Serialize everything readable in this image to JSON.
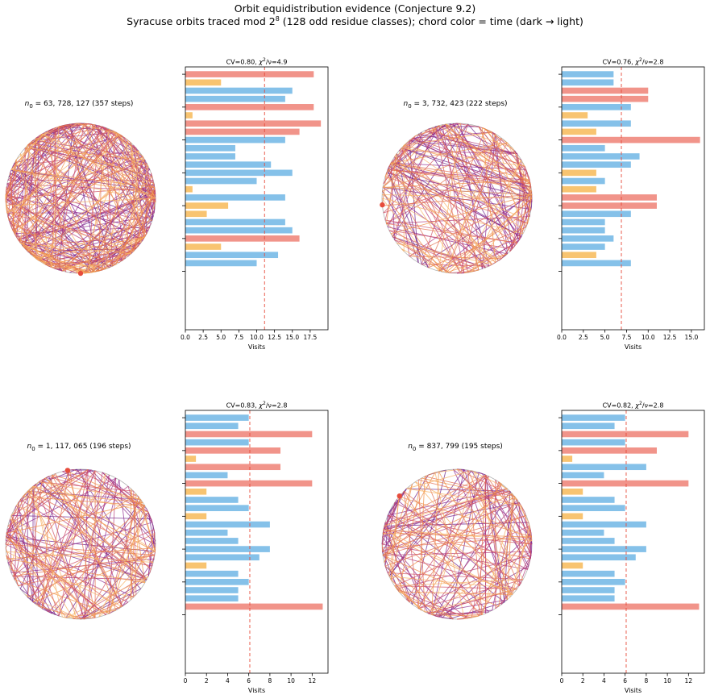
{
  "figure": {
    "title": "Orbit equidistribution evidence (Conjecture 9.2)",
    "subtitle_prefix": "Syracuse orbits traced mod 2",
    "subtitle_exp": "8",
    "subtitle_suffix": " (128 odd residue classes); chord color = time (dark → light)"
  },
  "colors": {
    "over": "#f1948a",
    "under": "#f8c471",
    "normal": "#85c1e9",
    "mean_line": "#e74c3c",
    "start_dot": "#e74c3c",
    "chord_palette": [
      "#6c1d88",
      "#8e2a8f",
      "#b13a7a",
      "#cf4f66",
      "#e36c4f",
      "#ef8d45",
      "#f7b266"
    ]
  },
  "chart_data": [
    {
      "type": "chord-diagram",
      "title_var": "n",
      "title_sub": "0",
      "title_text": " = 63, 728, 127 (357 steps)",
      "steps": 357,
      "start_angle_deg": 270
    },
    {
      "type": "bar",
      "orientation": "horizontal",
      "title_cv": "CV=0.80, ",
      "title_chi": "χ",
      "title_chi_exp": "2",
      "title_nu": "/ν=4.9",
      "xlabel": "Visits",
      "xlim": [
        0,
        20
      ],
      "xticks": [
        "0.0",
        "2.5",
        "5.0",
        "7.5",
        "10.0",
        "12.5",
        "15.0",
        "17.5"
      ],
      "xtick_values": [
        0,
        2.5,
        5,
        7.5,
        10,
        12.5,
        15,
        17.5
      ],
      "mean": 11.1,
      "values": [
        18,
        5,
        15,
        14,
        18,
        1,
        19,
        16,
        14,
        7,
        7,
        12,
        15,
        10,
        1,
        14,
        6,
        3,
        14,
        15,
        16,
        5,
        13,
        10
      ],
      "classes": [
        "over",
        "under",
        "normal",
        "normal",
        "over",
        "under",
        "over",
        "over",
        "normal",
        "normal",
        "normal",
        "normal",
        "normal",
        "normal",
        "under",
        "normal",
        "under",
        "under",
        "normal",
        "normal",
        "over",
        "under",
        "normal",
        "normal"
      ]
    },
    {
      "type": "chord-diagram",
      "title_var": "n",
      "title_sub": "0",
      "title_text": " = 3, 732, 423 (222 steps)",
      "steps": 222,
      "start_angle_deg": 185
    },
    {
      "type": "bar",
      "orientation": "horizontal",
      "title_cv": "CV=0.76, ",
      "title_chi": "χ",
      "title_chi_exp": "2",
      "title_nu": "/ν=2.8",
      "xlabel": "Visits",
      "xlim": [
        0,
        16.5
      ],
      "xticks": [
        "0.0",
        "2.5",
        "5.0",
        "7.5",
        "10.0",
        "12.5",
        "15.0"
      ],
      "xtick_values": [
        0,
        2.5,
        5,
        7.5,
        10,
        12.5,
        15
      ],
      "mean": 6.9,
      "values": [
        6,
        6,
        10,
        10,
        8,
        3,
        8,
        4,
        16,
        5,
        9,
        8,
        4,
        5,
        4,
        11,
        11,
        8,
        5,
        5,
        6,
        5,
        4,
        8
      ],
      "classes": [
        "normal",
        "normal",
        "over",
        "over",
        "normal",
        "under",
        "normal",
        "under",
        "over",
        "normal",
        "normal",
        "normal",
        "under",
        "normal",
        "under",
        "over",
        "over",
        "normal",
        "normal",
        "normal",
        "normal",
        "normal",
        "under",
        "normal"
      ]
    },
    {
      "type": "chord-diagram",
      "title_var": "n",
      "title_sub": "0",
      "title_text": " = 1, 117, 065 (196 steps)",
      "steps": 196,
      "start_angle_deg": 100
    },
    {
      "type": "bar",
      "orientation": "horizontal",
      "title_cv": "CV=0.83, ",
      "title_chi": "χ",
      "title_chi_exp": "2",
      "title_nu": "/ν=2.8",
      "xlabel": "Visits",
      "xlim": [
        0,
        13.5
      ],
      "xticks": [
        "0",
        "2",
        "4",
        "6",
        "8",
        "10",
        "12"
      ],
      "xtick_values": [
        0,
        2,
        4,
        6,
        8,
        10,
        12
      ],
      "mean": 6.1,
      "values": [
        6,
        5,
        12,
        6,
        9,
        1,
        9,
        4,
        12,
        2,
        5,
        6,
        2,
        8,
        4,
        5,
        8,
        7,
        2,
        5,
        6,
        5,
        5,
        13
      ],
      "classes": [
        "normal",
        "normal",
        "over",
        "normal",
        "over",
        "under",
        "over",
        "normal",
        "over",
        "under",
        "normal",
        "normal",
        "under",
        "normal",
        "normal",
        "normal",
        "normal",
        "normal",
        "under",
        "normal",
        "normal",
        "normal",
        "normal",
        "over"
      ]
    },
    {
      "type": "chord-diagram",
      "title_var": "n",
      "title_sub": "0",
      "title_text": " = 837, 799 (195 steps)",
      "steps": 195,
      "start_angle_deg": 140
    },
    {
      "type": "bar",
      "orientation": "horizontal",
      "title_cv": "CV=0.82, ",
      "title_chi": "χ",
      "title_chi_exp": "2",
      "title_nu": "/ν=2.8",
      "xlabel": "Visits",
      "xlim": [
        0,
        13.5
      ],
      "xticks": [
        "0",
        "2",
        "4",
        "6",
        "8",
        "10",
        "12"
      ],
      "xtick_values": [
        0,
        2,
        4,
        6,
        8,
        10,
        12
      ],
      "mean": 6.1,
      "values": [
        6,
        5,
        12,
        6,
        9,
        1,
        8,
        4,
        12,
        2,
        5,
        6,
        2,
        8,
        4,
        5,
        8,
        7,
        2,
        5,
        6,
        5,
        5,
        13
      ],
      "classes": [
        "normal",
        "normal",
        "over",
        "normal",
        "over",
        "under",
        "normal",
        "normal",
        "over",
        "under",
        "normal",
        "normal",
        "under",
        "normal",
        "normal",
        "normal",
        "normal",
        "normal",
        "under",
        "normal",
        "normal",
        "normal",
        "normal",
        "over"
      ]
    }
  ]
}
